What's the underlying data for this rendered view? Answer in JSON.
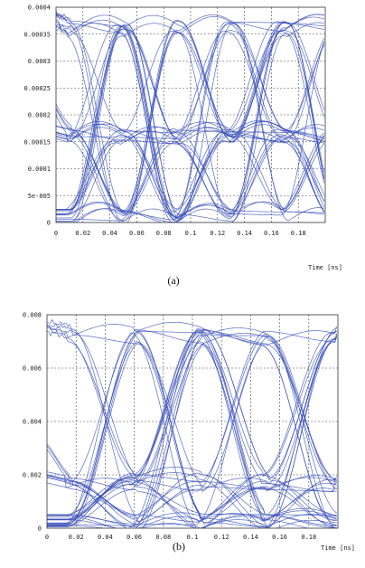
{
  "colors": {
    "trace": "#3a50b8",
    "grid": "#444444",
    "background": "#ffffff"
  },
  "chart_data": [
    {
      "type": "line",
      "subtype": "eye-diagram",
      "panel_label": "(a)",
      "xlabel": "Time [ns]",
      "ylabel": "",
      "xlim": [
        0,
        0.2
      ],
      "ylim": [
        0,
        0.0004
      ],
      "grid": true,
      "x_ticks": [
        0,
        0.02,
        0.04,
        0.06,
        0.08,
        0.1,
        0.12,
        0.14,
        0.16,
        0.18
      ],
      "x_tick_labels": [
        "0",
        "0.02",
        "0.04",
        "0.06",
        "0.08",
        "0.1",
        "0.12",
        "0.14",
        "0.16",
        "0.18"
      ],
      "y_ticks": [
        0,
        5e-05,
        0.0001,
        0.00015,
        0.0002,
        0.00025,
        0.0003,
        0.00035,
        0.0004
      ],
      "y_tick_labels": [
        "0",
        "5e-005",
        "0.0001",
        "0.00015",
        "0.0002",
        "0.00025",
        "0.0003",
        "0.00035",
        "0.0004"
      ],
      "eye": {
        "levels": [
          1e-05,
          0.00016,
          0.00036
        ],
        "crossings": [
          0.03,
          0.07,
          0.11,
          0.15,
          0.19
        ],
        "rise_fall": 0.02,
        "spread": 1.5e-05,
        "overshoot": 5e-05,
        "midspike": 8e-05
      }
    },
    {
      "type": "line",
      "subtype": "eye-diagram",
      "panel_label": "(b)",
      "xlabel": "Time [ns]",
      "ylabel": "",
      "xlim": [
        0,
        0.2
      ],
      "ylim": [
        0,
        0.008
      ],
      "grid": true,
      "x_ticks": [
        0,
        0.02,
        0.04,
        0.06,
        0.08,
        0.1,
        0.12,
        0.14,
        0.16,
        0.18
      ],
      "x_tick_labels": [
        "0",
        "0.02",
        "0.04",
        "0.06",
        "0.08",
        "0.1",
        "0.12",
        "0.14",
        "0.16",
        "0.18"
      ],
      "y_ticks": [
        0,
        0.002,
        0.004,
        0.006,
        0.008
      ],
      "y_tick_labels": [
        "0",
        "0.002",
        "0.004",
        "0.006",
        "0.008"
      ],
      "eye": {
        "levels": [
          0.0002,
          0.0017,
          0.0072
        ],
        "crossings": [
          0.04,
          0.085,
          0.13,
          0.175
        ],
        "rise_fall": 0.025,
        "spread": 0.00035,
        "overshoot": 0.0008,
        "midspike": 0.0016
      }
    }
  ]
}
